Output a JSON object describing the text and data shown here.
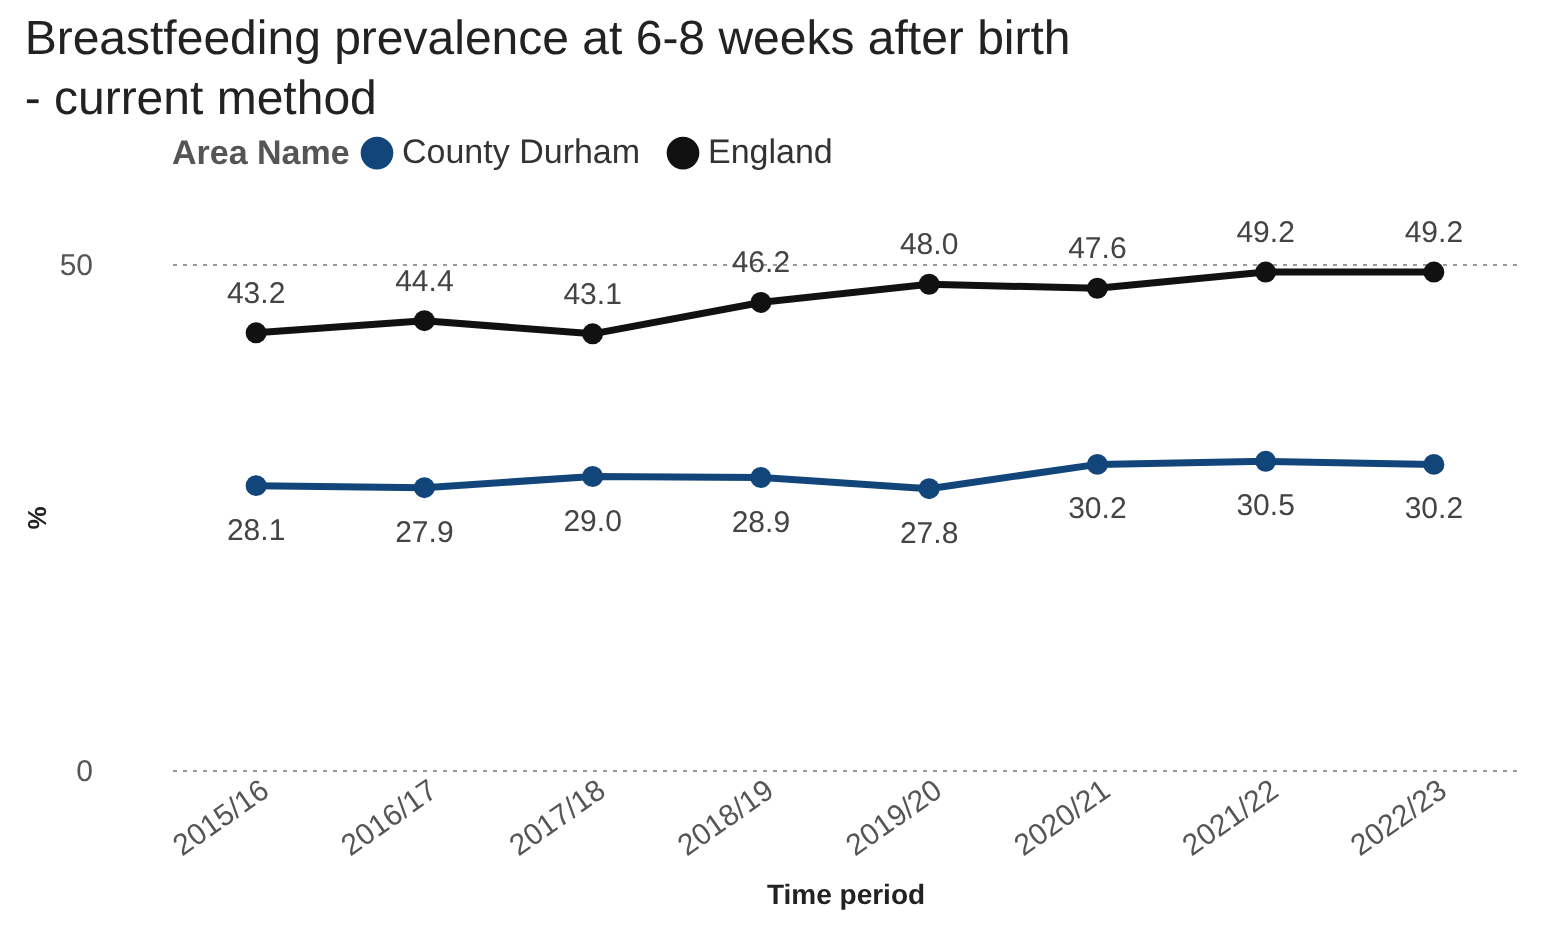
{
  "chart_data": {
    "type": "line",
    "title": "Breastfeeding prevalence at 6-8 weeks after birth - current method",
    "xlabel": "Time period",
    "ylabel": "%",
    "legend_title": "Area Name",
    "categories": [
      "2015/16",
      "2016/17",
      "2017/18",
      "2018/19",
      "2019/20",
      "2020/21",
      "2021/22",
      "2022/23"
    ],
    "series": [
      {
        "name": "County Durham",
        "color": "#12467b",
        "values": [
          28.1,
          27.9,
          29.0,
          28.9,
          27.8,
          30.2,
          30.5,
          30.2
        ],
        "value_labels": [
          "28.1",
          "27.9",
          "29.0",
          "28.9",
          "27.8",
          "30.2",
          "30.5",
          "30.2"
        ]
      },
      {
        "name": "England",
        "color": "#111111",
        "values": [
          43.2,
          44.4,
          43.1,
          46.2,
          48.0,
          47.6,
          49.2,
          49.2
        ],
        "value_labels": [
          "43.2",
          "44.4",
          "43.1",
          "46.2",
          "48.0",
          "47.6",
          "49.2",
          "49.2"
        ]
      }
    ],
    "ylim": [
      0,
      50
    ],
    "yticks": [
      0,
      50
    ],
    "grid": "y",
    "legend": "top left",
    "marker": "circle",
    "line_style": "solid"
  }
}
